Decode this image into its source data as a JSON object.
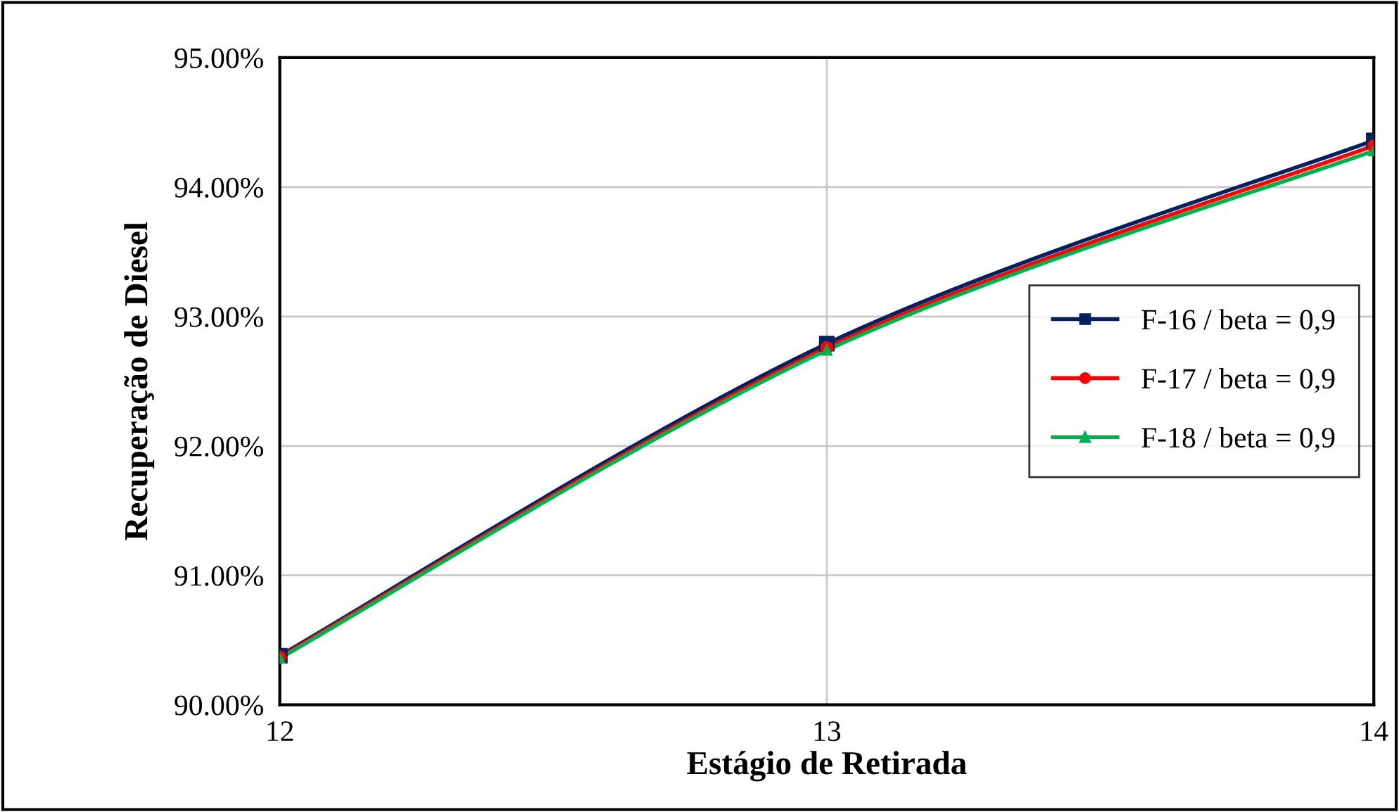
{
  "chart_data": {
    "type": "line",
    "xlabel": "Estágio de Retirada",
    "ylabel": "Recuperação de Diesel",
    "x": [
      12,
      13,
      14
    ],
    "xlim": [
      12,
      14
    ],
    "xticks": [
      12,
      13,
      14
    ],
    "ylim": [
      90,
      95
    ],
    "yticks": [
      {
        "value": 90,
        "label": "90.00%"
      },
      {
        "value": 91,
        "label": "91.00%"
      },
      {
        "value": 92,
        "label": "92.00%"
      },
      {
        "value": 93,
        "label": "93.00%"
      },
      {
        "value": 94,
        "label": "94.00%"
      },
      {
        "value": 95,
        "label": "95.00%"
      }
    ],
    "series": [
      {
        "name": "F-16 / beta = 0,9",
        "color": "#002060",
        "marker": "square",
        "values": [
          90.38,
          92.79,
          94.36
        ]
      },
      {
        "name": "F-17 / beta = 0,9",
        "color": "#ff0000",
        "marker": "circle",
        "values": [
          90.37,
          92.76,
          94.32
        ]
      },
      {
        "name": "F-18 / beta = 0,9",
        "color": "#00b050",
        "marker": "triangle",
        "values": [
          90.36,
          92.74,
          94.28
        ]
      }
    ],
    "grid": true,
    "legend": "right",
    "line_style": "solid"
  }
}
